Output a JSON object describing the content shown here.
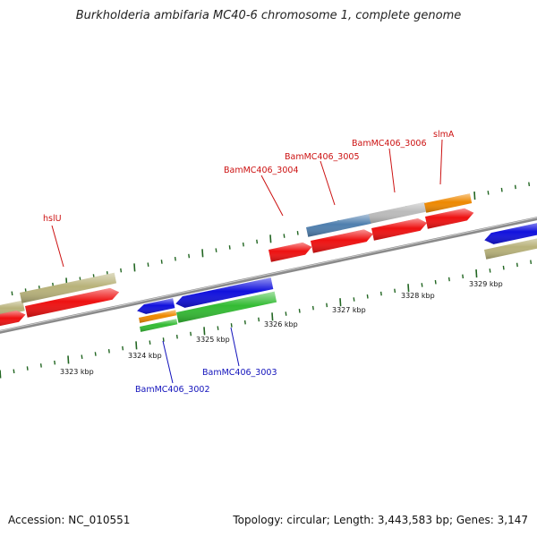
{
  "title": "Burkholderia ambifaria MC40-6 chromosome 1, complete genome",
  "footer": {
    "accession": "Accession: NC_010551",
    "stats": "Topology: circular; Length: 3,443,583 bp; Genes: 3,147"
  },
  "scale_labels": [
    "3323 kbp",
    "3324 kbp",
    "3325 kbp",
    "3326 kbp",
    "3327 kbp",
    "3328 kbp",
    "3329 kbp"
  ],
  "gene_labels": {
    "hslU": "hslU",
    "bam3004": "BamMC406_3004",
    "bam3005": "BamMC406_3005",
    "bam3006": "BamMC406_3006",
    "slmA": "slmA",
    "bam3002": "BamMC406_3002",
    "bam3003": "BamMC406_3003"
  },
  "colors": {
    "red": "#ee1111",
    "blue": "#1111dd",
    "olive": "#b8b27a",
    "green": "#33bb33",
    "orange": "#ee8800",
    "steel": "#4f7fae",
    "gray": "#bbbbbb",
    "backbone": "#777777",
    "tick": "#226622"
  }
}
